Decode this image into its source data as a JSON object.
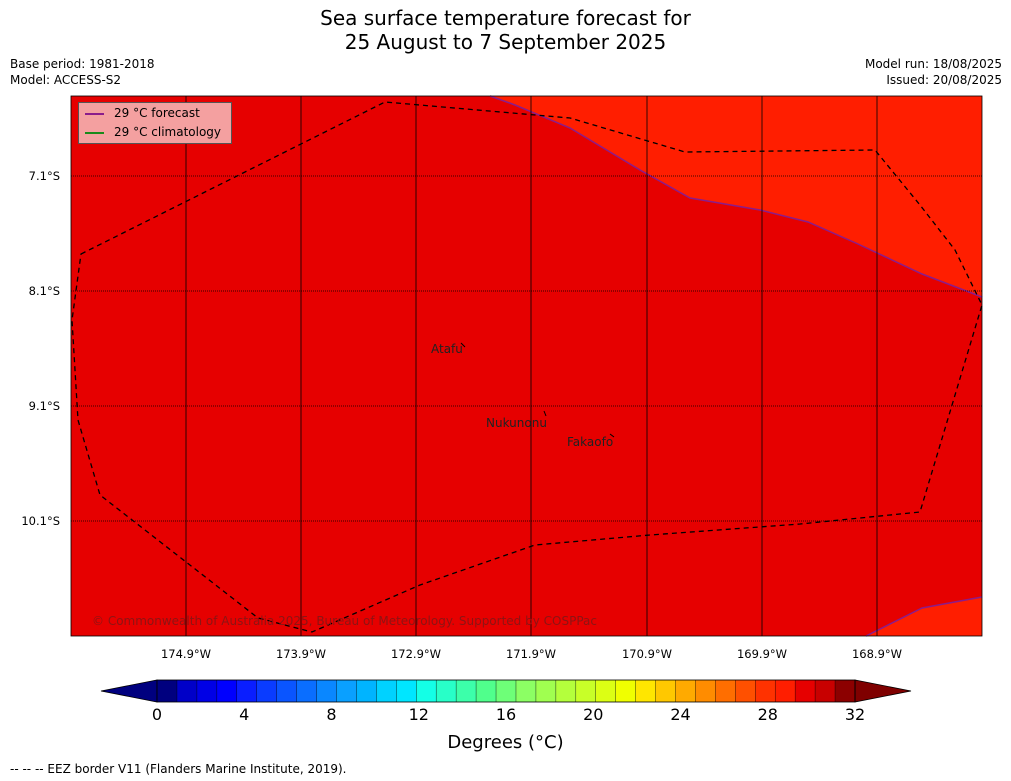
{
  "title": {
    "line1": "Sea surface temperature forecast for",
    "line2": "25 August to 7 September 2025"
  },
  "meta": {
    "base_period": "Base period: 1981-2018",
    "model": "Model: ACCESS-S2",
    "model_run": "Model run: 18/08/2025",
    "issued": "Issued: 20/08/2025"
  },
  "legend": {
    "forecast_label": "29 °C  forecast",
    "climatology_label": "29 °C  climatology",
    "forecast_color": "#8b1c8b",
    "climatology_color": "#1a8a1a"
  },
  "axes": {
    "lat_labels": [
      "7.1°S",
      "8.1°S",
      "9.1°S",
      "10.1°S"
    ],
    "lon_labels": [
      "174.9°W",
      "173.9°W",
      "172.9°W",
      "171.9°W",
      "170.9°W",
      "169.9°W",
      "168.9°W"
    ]
  },
  "islands": {
    "atafu": "Atafu",
    "nukunonu": "Nukunonu",
    "fakaofo": "Fakaofo"
  },
  "copyright": "© Commonwealth of Australia 2025, Bureau of Meteorology. Supported by COSPPac",
  "colorbar": {
    "title": "Degrees (°C)",
    "ticks": [
      "0",
      "4",
      "8",
      "12",
      "16",
      "20",
      "24",
      "28",
      "32"
    ],
    "colors": [
      "#00007f",
      "#0000c8",
      "#0000e6",
      "#0000ff",
      "#0a1eff",
      "#0a3cff",
      "#0a55ff",
      "#0a6eff",
      "#0a87ff",
      "#0aa0ff",
      "#00b4ff",
      "#00d2ff",
      "#00e6ff",
      "#14ffe6",
      "#28ffc8",
      "#3cffaa",
      "#50ff8c",
      "#6eff78",
      "#8cff64",
      "#a0ff50",
      "#b4ff3c",
      "#c8ff28",
      "#dcff14",
      "#f0ff00",
      "#ffe600",
      "#ffc800",
      "#ffaa00",
      "#ff8c00",
      "#ff6e00",
      "#ff5000",
      "#ff3200",
      "#ff1e00",
      "#e60000",
      "#c80000",
      "#8c0000"
    ],
    "under_color": "#00007f",
    "over_color": "#7f0000"
  },
  "map_colors": {
    "main": "#e60000",
    "warm": "#ff1e00"
  },
  "footnote": "--  --  -- EEZ border V11 (Flanders Marine Institute, 2019)."
}
